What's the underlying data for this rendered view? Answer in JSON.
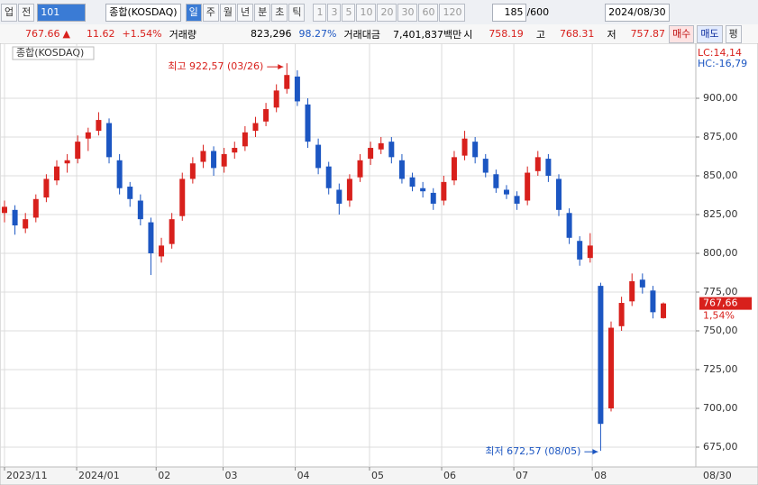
{
  "toolbar": {
    "market": "업",
    "scope": "전",
    "code": "101",
    "name": "종합(KOSDAQ)",
    "periods": [
      "일",
      "주",
      "월",
      "년",
      "분",
      "초",
      "틱"
    ],
    "intervals": [
      "1",
      "3",
      "5",
      "10",
      "20",
      "30",
      "60",
      "120"
    ],
    "count": "185",
    "max_count": "/600",
    "date": "2024/08/30"
  },
  "info": {
    "price": "767.66",
    "arrow": "▲",
    "change": "11.62",
    "change_pct": "+1.54%",
    "volume_label": "거래량",
    "volume": "823,296",
    "volume_pct": "98.27%",
    "amount_label": "거래대금",
    "amount": "7,401,837백만",
    "open_label": "시",
    "open": "758.19",
    "high_label": "고",
    "high": "768.31",
    "low_label": "저",
    "low": "757.87",
    "buy": "매수",
    "sell": "매도",
    "avg": "평"
  },
  "chart_data": {
    "type": "candlestick",
    "title": "종합(KOSDAQ)",
    "up_color": "#d8201c",
    "down_color": "#1c56c2",
    "grid": true,
    "open": [
      826,
      828,
      816,
      823,
      836,
      847,
      858,
      861,
      874,
      879,
      884,
      860,
      843,
      834,
      820,
      798,
      806,
      824,
      848,
      859,
      866,
      856,
      865,
      869,
      879,
      885,
      894,
      906,
      914,
      896,
      870,
      856,
      841,
      834,
      849,
      861,
      867,
      872,
      860,
      849,
      842,
      839,
      834,
      847,
      863,
      872,
      861,
      851,
      841,
      837,
      834,
      853,
      861,
      848,
      826,
      808,
      797,
      779,
      700,
      753,
      769,
      783,
      776,
      758.19
    ],
    "high": [
      834,
      831,
      826,
      838,
      851,
      860,
      864,
      876,
      881,
      891,
      887,
      864,
      846,
      838,
      823,
      810,
      826,
      852,
      862,
      870,
      869,
      868,
      872,
      882,
      888,
      897,
      909,
      922.57,
      918,
      900,
      874,
      859,
      845,
      851,
      864,
      872,
      875,
      875,
      864,
      852,
      846,
      842,
      850,
      866,
      879,
      875,
      864,
      854,
      844,
      840,
      856,
      866,
      864,
      851,
      829,
      811,
      813,
      781,
      756,
      772,
      787,
      787,
      779,
      768.31
    ],
    "low": [
      820,
      812,
      813,
      820,
      833,
      844,
      852,
      858,
      866,
      876,
      858,
      838,
      830,
      818,
      786,
      794,
      803,
      821,
      845,
      855,
      850,
      852,
      861,
      866,
      875,
      882,
      891,
      903,
      895,
      868,
      851,
      838,
      825,
      830,
      846,
      857,
      864,
      858,
      845,
      840,
      836,
      828,
      831,
      844,
      860,
      858,
      849,
      839,
      835,
      828,
      831,
      850,
      846,
      824,
      806,
      792,
      794,
      672.57,
      698,
      750,
      766,
      774,
      758,
      757.87
    ],
    "close": [
      830,
      818,
      822,
      835,
      848,
      856,
      860,
      872,
      878,
      886,
      862,
      842,
      835,
      822,
      800,
      805,
      822,
      848,
      858,
      866,
      855,
      864,
      868,
      878,
      884,
      893,
      905,
      915,
      898,
      872,
      855,
      842,
      832,
      848,
      860,
      868,
      871,
      862,
      848,
      843,
      840,
      832,
      846,
      862,
      874,
      862,
      852,
      842,
      838,
      832,
      852,
      862,
      850,
      828,
      810,
      796,
      805,
      690,
      752,
      768,
      782,
      778,
      762,
      767.66
    ],
    "xlim": [
      -0.43,
      66.1
    ],
    "xticks": [
      {
        "value": 0,
        "label": "2023/11"
      },
      {
        "value": 6.9,
        "label": "2024/01"
      },
      {
        "value": 14.5,
        "label": "02"
      },
      {
        "value": 20.9,
        "label": "03"
      },
      {
        "value": 27.8,
        "label": "04"
      },
      {
        "value": 34.9,
        "label": "05"
      },
      {
        "value": 41.8,
        "label": "06"
      },
      {
        "value": 48.7,
        "label": "07"
      },
      {
        "value": 56.2,
        "label": "08"
      }
    ],
    "last_date": "08/30",
    "ylim": [
      662.2,
      934.3
    ],
    "yticks": [
      {
        "value": 675,
        "label": "675,00"
      },
      {
        "value": 700,
        "label": "700,00"
      },
      {
        "value": 725,
        "label": "725,00"
      },
      {
        "value": 750,
        "label": "750,00"
      },
      {
        "value": 775,
        "label": "775,00"
      },
      {
        "value": 800,
        "label": "800,00"
      },
      {
        "value": 825,
        "label": "825,00"
      },
      {
        "value": 850,
        "label": "850,00"
      },
      {
        "value": 875,
        "label": "875,00"
      },
      {
        "value": 900,
        "label": "900,00"
      }
    ],
    "high_note": "최고 922,57 (03/26)",
    "low_note": "최저 672,57 (08/05)",
    "lc": "LC:14,14",
    "hc": "HC:-16,79",
    "price_tag": "767,66",
    "pct_tag": "1,54%"
  }
}
